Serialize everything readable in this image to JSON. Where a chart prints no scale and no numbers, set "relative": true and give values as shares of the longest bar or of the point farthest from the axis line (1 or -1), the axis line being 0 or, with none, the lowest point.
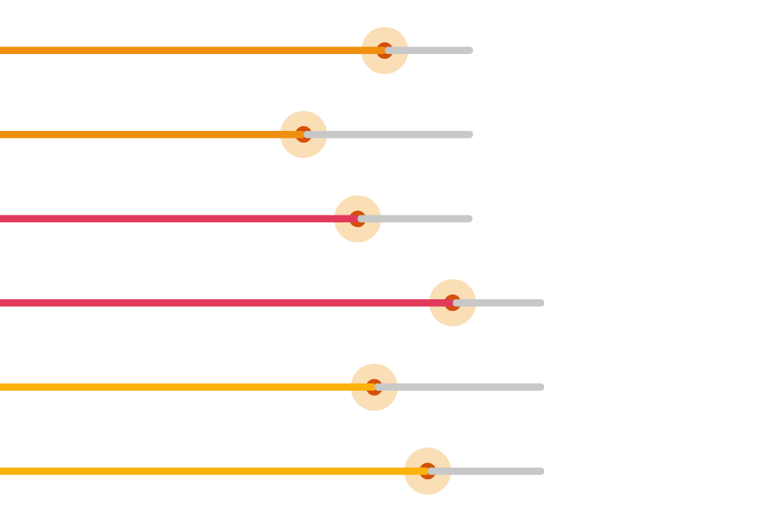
{
  "chart_data": {
    "type": "bar",
    "orientation": "horizontal",
    "stacked": true,
    "relative": true,
    "categories": [
      null,
      null,
      null,
      null,
      null,
      null
    ],
    "series": [
      {
        "colors": [
          "#f0900f",
          "#ef8f10",
          "#e23a5b",
          "#e23a5b",
          "#fbb20a",
          "#fbb20a"
        ],
        "values": [
          0.707,
          0.558,
          0.657,
          0.832,
          0.688,
          0.786
        ]
      },
      {
        "color": "#c8c8c8",
        "values": [
          0.162,
          0.311,
          0.211,
          0.168,
          0.312,
          0.214
        ]
      }
    ],
    "legend": false
  }
}
